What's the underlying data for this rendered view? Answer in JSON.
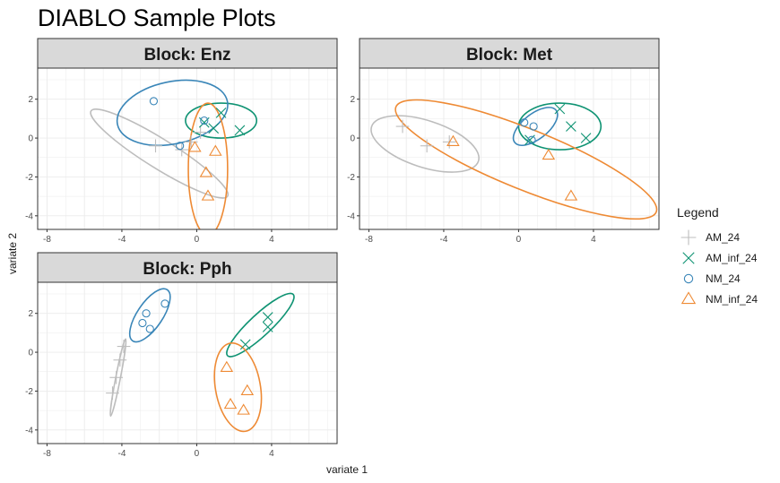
{
  "chart_data": {
    "type": "scatter",
    "title": "DIABLO Sample Plots",
    "xlabel": "variate 1",
    "ylabel": "variate 2",
    "xlim": [
      -8.5,
      7.5
    ],
    "ylim": [
      -4.7,
      3.6
    ],
    "xticks": [
      -8,
      -4,
      0,
      4
    ],
    "yticks": [
      -4,
      -2,
      0,
      2
    ],
    "grid": true,
    "legend": {
      "title": "Legend",
      "position": "right",
      "entries": [
        {
          "name": "AM_24",
          "shape": "plus",
          "color": "#bdbdbd"
        },
        {
          "name": "AM_inf_24",
          "shape": "cross",
          "color": "#0f9373"
        },
        {
          "name": "NM_24",
          "shape": "circle",
          "color": "#3a86b8"
        },
        {
          "name": "NM_inf_24",
          "shape": "triangle",
          "color": "#ee8a34"
        }
      ]
    },
    "panels": [
      {
        "title": "Block: Enz",
        "series": [
          {
            "group": "AM_24",
            "points": [
              [
                -2.2,
                -0.4
              ],
              [
                -0.8,
                -0.6
              ],
              [
                -0.3,
                -0.2
              ],
              [
                0.2,
                0.3
              ]
            ]
          },
          {
            "group": "AM_inf_24",
            "points": [
              [
                0.4,
                0.8
              ],
              [
                1.3,
                1.3
              ],
              [
                2.3,
                0.4
              ],
              [
                0.9,
                0.5
              ]
            ]
          },
          {
            "group": "NM_24",
            "points": [
              [
                -2.3,
                1.9
              ],
              [
                -0.9,
                -0.4
              ],
              [
                0.4,
                0.9
              ]
            ]
          },
          {
            "group": "NM_inf_24",
            "points": [
              [
                -0.1,
                -0.5
              ],
              [
                1.0,
                -0.7
              ],
              [
                0.5,
                -1.8
              ],
              [
                0.6,
                -3.0
              ]
            ]
          }
        ],
        "ellipses": [
          {
            "group": "AM_24",
            "center": [
              -2.0,
              -0.8
            ],
            "rx": 4.3,
            "ry": 0.75,
            "angle_deg": -32
          },
          {
            "group": "AM_inf_24",
            "center": [
              1.3,
              0.9
            ],
            "rx": 1.9,
            "ry": 0.9,
            "angle_deg": 0
          },
          {
            "group": "NM_24",
            "center": [
              -1.3,
              1.3
            ],
            "rx": 3.0,
            "ry": 1.6,
            "angle_deg": 12
          },
          {
            "group": "NM_inf_24",
            "center": [
              0.6,
              -1.6
            ],
            "rx": 1.05,
            "ry": 3.4,
            "angle_deg": 0
          }
        ]
      },
      {
        "title": "Block: Met",
        "series": [
          {
            "group": "AM_24",
            "points": [
              [
                -6.2,
                0.6
              ],
              [
                -4.9,
                -0.4
              ],
              [
                -3.7,
                -0.2
              ]
            ]
          },
          {
            "group": "AM_inf_24",
            "points": [
              [
                2.2,
                1.5
              ],
              [
                2.8,
                0.6
              ],
              [
                3.6,
                0.0
              ],
              [
                0.6,
                -0.1
              ]
            ]
          },
          {
            "group": "NM_24",
            "points": [
              [
                0.3,
                0.8
              ],
              [
                0.8,
                0.6
              ],
              [
                0.7,
                -0.1
              ]
            ]
          },
          {
            "group": "NM_inf_24",
            "points": [
              [
                -3.5,
                -0.2
              ],
              [
                1.6,
                -0.9
              ],
              [
                2.8,
                -3.0
              ]
            ]
          }
        ],
        "ellipses": [
          {
            "group": "AM_24",
            "center": [
              -5.0,
              -0.3
            ],
            "rx": 3.0,
            "ry": 1.2,
            "angle_deg": -18
          },
          {
            "group": "AM_inf_24",
            "center": [
              2.2,
              0.6
            ],
            "rx": 2.2,
            "ry": 1.2,
            "angle_deg": 0
          },
          {
            "group": "NM_24",
            "center": [
              0.9,
              0.6
            ],
            "rx": 1.4,
            "ry": 0.65,
            "angle_deg": 38
          },
          {
            "group": "NM_inf_24",
            "center": [
              0.4,
              -1.1
            ],
            "rx": 7.5,
            "ry": 1.55,
            "angle_deg": -22
          }
        ]
      },
      {
        "title": "Block: Pph",
        "series": [
          {
            "group": "AM_24",
            "points": [
              [
                -4.1,
                -0.4
              ],
              [
                -4.3,
                -1.3
              ],
              [
                -4.5,
                -2.1
              ],
              [
                -3.9,
                0.3
              ]
            ]
          },
          {
            "group": "AM_inf_24",
            "points": [
              [
                2.6,
                0.4
              ],
              [
                3.8,
                1.8
              ],
              [
                3.8,
                1.3
              ]
            ]
          },
          {
            "group": "NM_24",
            "points": [
              [
                -2.7,
                2.0
              ],
              [
                -2.9,
                1.5
              ],
              [
                -2.5,
                1.2
              ],
              [
                -1.7,
                2.5
              ]
            ]
          },
          {
            "group": "NM_inf_24",
            "points": [
              [
                1.6,
                -0.8
              ],
              [
                1.8,
                -2.7
              ],
              [
                2.7,
                -2.0
              ],
              [
                2.5,
                -3.0
              ]
            ]
          }
        ],
        "ellipses": [
          {
            "group": "AM_24",
            "center": [
              -4.2,
              -1.3
            ],
            "rx": 2.1,
            "ry": 0.12,
            "angle_deg": 79
          },
          {
            "group": "AM_inf_24",
            "center": [
              3.4,
              1.4
            ],
            "rx": 2.4,
            "ry": 0.55,
            "angle_deg": 43
          },
          {
            "group": "NM_24",
            "center": [
              -2.5,
              1.9
            ],
            "rx": 1.65,
            "ry": 0.65,
            "angle_deg": 56
          },
          {
            "group": "NM_inf_24",
            "center": [
              2.2,
              -1.8
            ],
            "rx": 1.2,
            "ry": 2.3,
            "angle_deg": 10
          }
        ]
      }
    ]
  }
}
